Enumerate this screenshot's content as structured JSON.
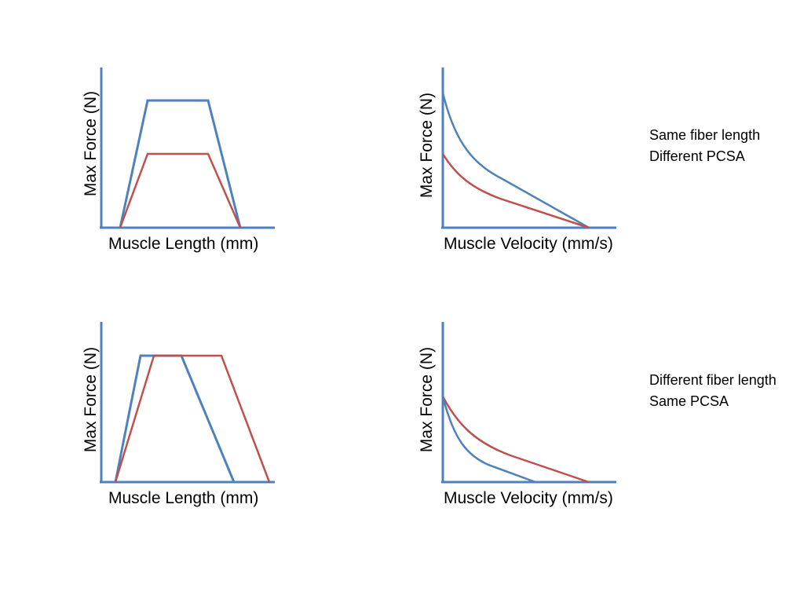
{
  "panels": {
    "top_left": {
      "xlabel": "Muscle Length (mm)",
      "ylabel": "Max Force (N)"
    },
    "top_right": {
      "xlabel": "Muscle Velocity (mm/s)",
      "ylabel": "Max Force (N)"
    },
    "bottom_left": {
      "xlabel": "Muscle Length (mm)",
      "ylabel": "Max Force (N)"
    },
    "bottom_right": {
      "xlabel": "Muscle Velocity (mm/s)",
      "ylabel": "Max Force (N)"
    }
  },
  "captions": {
    "top": {
      "line1": "Same fiber length",
      "line2": "Different PCSA"
    },
    "bottom": {
      "line1": "Different fiber length",
      "line2": "Same PCSA"
    }
  },
  "colors": {
    "axis": "#4f81bd",
    "series_blue": "#4f81bd",
    "series_red": "#c0504d"
  }
}
